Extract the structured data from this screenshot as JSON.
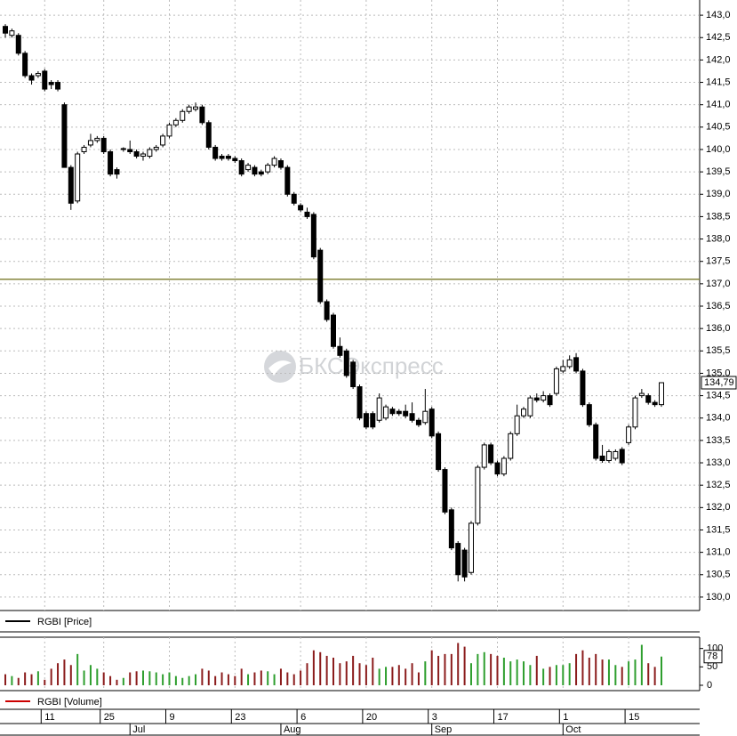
{
  "chart_data": {
    "type": "candlestick",
    "watermark": "БКСЭкспресс",
    "price": {
      "name": "RGBI [Price]",
      "open": [
        142.75,
        142.55,
        142.55,
        142.15,
        141.65,
        141.65,
        141.75,
        141.5,
        141.5,
        141.0,
        139.6,
        138.85,
        139.95,
        140.1,
        140.2,
        140.25,
        139.95,
        139.55,
        140.0,
        140.0,
        139.95,
        139.85,
        139.85,
        140.0,
        140.1,
        140.3,
        140.55,
        140.65,
        140.85,
        140.9,
        140.95,
        140.6,
        140.05,
        139.85,
        139.85,
        139.8,
        139.75,
        139.55,
        139.6,
        139.5,
        139.5,
        139.65,
        139.75,
        139.6,
        139.0,
        138.75,
        138.6,
        138.55,
        137.75,
        136.6,
        136.3,
        135.6,
        135.5,
        135.25,
        134.7,
        134.1,
        134.1,
        133.95,
        134.0,
        134.2,
        134.15,
        134.15,
        134.1,
        133.95,
        133.9,
        134.2,
        133.65,
        132.85,
        131.95,
        131.2,
        131.05,
        130.55,
        131.65,
        132.9,
        133.4,
        133.0,
        132.75,
        133.1,
        133.65,
        134.05,
        134.05,
        134.45,
        134.4,
        134.5,
        134.55,
        135.05,
        135.15,
        135.35,
        135.05,
        134.3,
        133.85,
        133.15,
        133.05,
        133.1,
        133.3,
        133.45,
        133.8,
        134.5,
        134.5,
        134.35,
        134.3
      ],
      "high": [
        142.8,
        142.7,
        142.6,
        142.2,
        141.7,
        141.75,
        141.8,
        141.55,
        141.55,
        141.05,
        139.65,
        139.95,
        140.1,
        140.35,
        140.3,
        140.3,
        140.0,
        139.6,
        140.05,
        140.2,
        140.0,
        139.95,
        140.05,
        140.1,
        140.35,
        140.6,
        140.7,
        140.9,
        141.0,
        141.05,
        141.0,
        140.65,
        140.1,
        139.9,
        139.9,
        139.85,
        139.8,
        139.7,
        139.65,
        139.55,
        139.7,
        139.85,
        139.8,
        139.65,
        139.05,
        138.8,
        138.7,
        138.6,
        137.8,
        136.65,
        136.35,
        135.8,
        135.55,
        135.3,
        134.75,
        134.15,
        134.15,
        134.55,
        134.3,
        134.25,
        134.2,
        134.3,
        134.35,
        134.0,
        134.65,
        134.25,
        133.7,
        132.9,
        132.0,
        131.25,
        131.1,
        131.7,
        132.95,
        133.45,
        133.45,
        133.05,
        133.15,
        133.7,
        134.3,
        134.25,
        134.5,
        134.55,
        134.6,
        134.55,
        135.15,
        135.3,
        135.4,
        135.45,
        135.1,
        134.35,
        133.9,
        133.4,
        133.3,
        133.3,
        133.35,
        133.85,
        134.5,
        134.65,
        134.55,
        134.4,
        134.8
      ],
      "low": [
        142.5,
        142.5,
        142.1,
        141.6,
        141.45,
        141.6,
        141.3,
        141.35,
        141.3,
        139.6,
        138.65,
        138.8,
        139.9,
        140.05,
        140.15,
        139.9,
        139.4,
        139.35,
        139.95,
        139.9,
        139.8,
        139.75,
        139.8,
        139.95,
        140.05,
        140.25,
        140.5,
        140.6,
        140.8,
        140.85,
        140.55,
        140.0,
        139.75,
        139.75,
        139.75,
        139.7,
        139.4,
        139.5,
        139.4,
        139.4,
        139.45,
        139.6,
        139.55,
        138.95,
        138.75,
        138.6,
        138.45,
        137.55,
        136.55,
        136.15,
        135.55,
        135.35,
        134.9,
        134.65,
        133.95,
        133.75,
        133.75,
        133.9,
        133.95,
        134.05,
        134.05,
        134.0,
        133.9,
        133.8,
        133.85,
        133.55,
        132.8,
        131.85,
        131.05,
        130.35,
        130.35,
        130.5,
        131.6,
        132.85,
        132.95,
        132.7,
        132.7,
        133.05,
        133.6,
        134.0,
        134.0,
        134.35,
        134.35,
        134.25,
        134.5,
        135.0,
        135.1,
        135.0,
        134.25,
        133.8,
        133.05,
        133.0,
        133.0,
        133.05,
        132.95,
        133.4,
        133.75,
        134.45,
        134.3,
        134.25,
        134.25
      ],
      "close": [
        142.6,
        142.65,
        142.15,
        141.65,
        141.55,
        141.7,
        141.35,
        141.45,
        141.35,
        139.6,
        138.8,
        139.9,
        140.05,
        140.2,
        140.25,
        139.95,
        139.45,
        139.45,
        140.02,
        139.95,
        139.85,
        139.9,
        140.0,
        140.05,
        140.3,
        140.55,
        140.65,
        140.85,
        140.95,
        140.95,
        140.6,
        140.05,
        139.8,
        139.8,
        139.8,
        139.75,
        139.45,
        139.65,
        139.45,
        139.45,
        139.65,
        139.8,
        139.6,
        139.0,
        138.8,
        138.65,
        138.5,
        137.6,
        136.6,
        136.2,
        135.6,
        135.4,
        134.95,
        134.7,
        134.0,
        133.8,
        133.8,
        134.45,
        134.25,
        134.1,
        134.1,
        134.05,
        133.95,
        133.85,
        134.15,
        133.6,
        132.85,
        131.9,
        131.1,
        130.5,
        130.45,
        131.65,
        132.9,
        133.4,
        133.0,
        132.75,
        133.1,
        133.65,
        134.05,
        134.2,
        134.45,
        134.4,
        134.5,
        134.3,
        135.1,
        135.15,
        135.3,
        135.05,
        134.3,
        133.85,
        133.1,
        133.05,
        133.25,
        133.25,
        133.0,
        133.8,
        134.45,
        134.55,
        134.35,
        134.3,
        134.79
      ],
      "last_label": "134,79",
      "ylim": [
        129.7,
        143.34
      ],
      "yticks": [
        {
          "value": 130.0,
          "label": "130,0"
        },
        {
          "value": 130.5,
          "label": "130,5"
        },
        {
          "value": 131.0,
          "label": "131,0"
        },
        {
          "value": 131.5,
          "label": "131,5"
        },
        {
          "value": 132.0,
          "label": "132,0"
        },
        {
          "value": 132.5,
          "label": "132,5"
        },
        {
          "value": 133.0,
          "label": "133,0"
        },
        {
          "value": 133.5,
          "label": "133,5"
        },
        {
          "value": 134.0,
          "label": "134,0"
        },
        {
          "value": 134.5,
          "label": "134,5"
        },
        {
          "value": 135.0,
          "label": "135,0"
        },
        {
          "value": 135.5,
          "label": "135,5"
        },
        {
          "value": 136.0,
          "label": "136,0"
        },
        {
          "value": 136.5,
          "label": "136,5"
        },
        {
          "value": 137.0,
          "label": "137,0"
        },
        {
          "value": 137.5,
          "label": "137,5"
        },
        {
          "value": 138.0,
          "label": "138,0"
        },
        {
          "value": 138.5,
          "label": "138,5"
        },
        {
          "value": 139.0,
          "label": "139,0"
        },
        {
          "value": 139.5,
          "label": "139,5"
        },
        {
          "value": 140.0,
          "label": "140,0"
        },
        {
          "value": 140.5,
          "label": "140,5"
        },
        {
          "value": 141.0,
          "label": "141,0"
        },
        {
          "value": 141.5,
          "label": "141,5"
        },
        {
          "value": 142.0,
          "label": "142,0"
        },
        {
          "value": 142.5,
          "label": "142,5"
        },
        {
          "value": 143.0,
          "label": "143,0"
        }
      ],
      "hline": 137.1,
      "hline_color": "#7a7a2a",
      "color": "#000000"
    },
    "volume": {
      "name": "RGBI [Volume]",
      "values": [
        30,
        25,
        20,
        35,
        30,
        38,
        15,
        45,
        60,
        70,
        55,
        85,
        40,
        55,
        45,
        35,
        25,
        15,
        20,
        35,
        38,
        40,
        38,
        35,
        30,
        35,
        25,
        20,
        25,
        30,
        45,
        40,
        25,
        35,
        30,
        25,
        45,
        30,
        35,
        40,
        38,
        30,
        45,
        35,
        30,
        40,
        60,
        95,
        90,
        80,
        75,
        60,
        65,
        80,
        60,
        55,
        75,
        45,
        50,
        50,
        55,
        45,
        60,
        35,
        65,
        95,
        80,
        85,
        85,
        115,
        105,
        60,
        85,
        90,
        85,
        80,
        75,
        65,
        70,
        65,
        55,
        80,
        45,
        50,
        55,
        55,
        60,
        85,
        95,
        75,
        85,
        70,
        70,
        55,
        50,
        65,
        70,
        110,
        60,
        50,
        78
      ],
      "up_color": "#2e9e2e",
      "down_color": "#8b1c1c",
      "legend_color": "#cc0000",
      "ylim": [
        0,
        150
      ],
      "yticks": [
        0,
        50,
        100
      ]
    },
    "categories": [
      null,
      null,
      null,
      null,
      null,
      null,
      "11",
      null,
      null,
      null,
      null,
      null,
      null,
      null,
      null,
      "25",
      null,
      null,
      null,
      null,
      null,
      null,
      null,
      null,
      null,
      "9",
      null,
      null,
      null,
      null,
      null,
      null,
      null,
      null,
      null,
      "23",
      null,
      null,
      null,
      null,
      null,
      null,
      null,
      null,
      null,
      "6",
      null,
      null,
      null,
      null,
      null,
      null,
      null,
      null,
      null,
      "20",
      null,
      null,
      null,
      null,
      null,
      null,
      null,
      null,
      null,
      "3",
      null,
      null,
      null,
      null,
      null,
      null,
      null,
      null,
      null,
      "17",
      null,
      null,
      null,
      null,
      null,
      null,
      null,
      null,
      null,
      "1",
      null,
      null,
      null,
      null,
      null,
      null,
      null,
      null,
      null,
      "15",
      null,
      null,
      null,
      null,
      null
    ],
    "months": [
      null,
      null,
      null,
      null,
      null,
      null,
      null,
      null,
      null,
      null,
      null,
      null,
      null,
      null,
      null,
      null,
      null,
      null,
      null,
      "Jul",
      null,
      null,
      null,
      null,
      null,
      null,
      null,
      null,
      null,
      null,
      null,
      null,
      null,
      null,
      null,
      null,
      null,
      null,
      null,
      null,
      null,
      null,
      "Aug",
      null,
      null,
      null,
      null,
      null,
      null,
      null,
      null,
      null,
      null,
      null,
      null,
      null,
      null,
      null,
      null,
      null,
      null,
      null,
      null,
      null,
      null,
      "Sep",
      null,
      null,
      null,
      null,
      null,
      null,
      null,
      null,
      null,
      null,
      null,
      null,
      null,
      null,
      null,
      null,
      null,
      null,
      null,
      "Oct",
      null,
      null,
      null,
      null,
      null,
      null,
      null,
      null,
      null,
      null,
      null,
      null,
      null,
      null,
      null
    ]
  }
}
